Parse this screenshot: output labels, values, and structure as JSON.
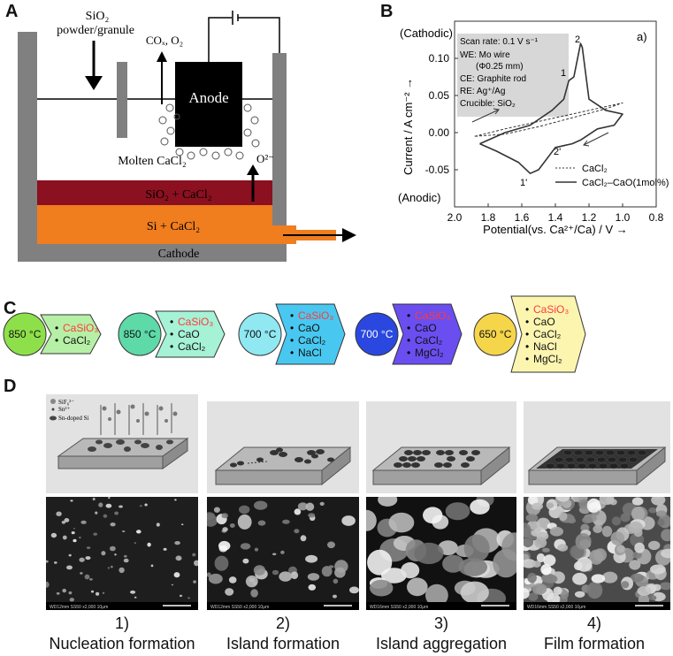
{
  "panel_labels": [
    "A",
    "B",
    "C",
    "D"
  ],
  "panelA": {
    "feed_label_1": "SiO₂",
    "feed_label_2": "powder/granule",
    "gas_label": "COₓ, O₂",
    "anode_label": "Anode",
    "molten_label": "Molten CaCl₂",
    "ion_label": "O²⁻",
    "layer1_label": "SiO₂ + CaCl₂",
    "layer2_label": "Si + CaCl₂",
    "cathode_label": "Cathode",
    "colors": {
      "layer1": "#8b1020",
      "layer2": "#f07d1e",
      "wall": "#808080",
      "anode": "#000000"
    }
  },
  "panelB": {
    "cathodic": "(Cathodic)",
    "anodic": "(Anodic)",
    "panel_tag": "a)",
    "ylabel": "Current / A cm⁻² →",
    "xlabel": "Potential(vs. Ca²⁺/Ca) / V →",
    "info_lines": [
      "Scan rate: 0.1 V s⁻¹",
      "WE: Mo wire",
      "(Φ0.25 mm)",
      "CE: Graphite rod",
      "RE: Ag⁺/Ag",
      "Crucible: SiO₂"
    ],
    "peak_labels": [
      "1",
      "2",
      "2'",
      "1'"
    ],
    "legend": [
      "CaCl₂",
      "CaCl₂–CaO(1mol%)"
    ]
  },
  "chart_data": {
    "type": "line",
    "xlabel": "Potential(vs. Ca²⁺/Ca) / V →",
    "ylabel": "Current / A cm⁻² →",
    "xlim": [
      2.0,
      0.8
    ],
    "ylim": [
      -0.1,
      0.15
    ],
    "x_ticks": [
      "2.0",
      "1.8",
      "1.6",
      "1.4",
      "1.2",
      "1.0",
      "0.8"
    ],
    "y_ticks": [
      "-0.05",
      "0.00",
      "0.05",
      "0.10"
    ],
    "x_tick_values": [
      2.0,
      1.8,
      1.6,
      1.4,
      1.2,
      1.0,
      0.8
    ],
    "y_tick_values": [
      -0.05,
      0.0,
      0.05,
      0.1
    ],
    "series": [
      {
        "name": "CaCl₂",
        "dash": true,
        "x": [
          1.88,
          1.7,
          1.5,
          1.3,
          1.1,
          1.0,
          1.1,
          1.3,
          1.5,
          1.7,
          1.88
        ],
        "y": [
          -0.005,
          0.005,
          0.015,
          0.025,
          0.035,
          0.04,
          0.032,
          0.02,
          0.008,
          -0.002,
          -0.005
        ]
      },
      {
        "name": "CaCl₂–CaO(1mol%)",
        "dash": false,
        "x": [
          1.85,
          1.7,
          1.55,
          1.42,
          1.35,
          1.32,
          1.29,
          1.25,
          1.24,
          1.2,
          1.1,
          1.0,
          1.05,
          1.15,
          1.25,
          1.3,
          1.4,
          1.5,
          1.55,
          1.62,
          1.75,
          1.85
        ],
        "y": [
          -0.015,
          0.0,
          0.01,
          0.03,
          0.045,
          0.07,
          0.075,
          0.12,
          0.115,
          0.045,
          0.03,
          0.025,
          0.01,
          0.005,
          -0.01,
          -0.015,
          -0.02,
          -0.05,
          -0.055,
          -0.04,
          -0.025,
          -0.015
        ]
      }
    ]
  },
  "panelC": {
    "steps": [
      {
        "temp": "850 °C",
        "color": "#8ee04a",
        "arrow": "#b6f0a6",
        "items": [
          "CaSiO₃",
          "CaCl₂"
        ]
      },
      {
        "temp": "850 °C",
        "color": "#5ed9a8",
        "arrow": "#a6f2d6",
        "items": [
          "CaSiO₃",
          "CaO",
          "CaCl₂"
        ]
      },
      {
        "temp": "700 °C",
        "color": "#8fe8f2",
        "arrow": "#48c8f0",
        "items": [
          "CaSiO₃",
          "CaO",
          "CaCl₂",
          "NaCl"
        ]
      },
      {
        "temp": "700 °C",
        "color": "#2a48e0",
        "arrow": "#6a4ef0",
        "items": [
          "CaSiO₃",
          "CaO",
          "CaCl₂",
          "MgCl₂"
        ]
      },
      {
        "temp": "650 °C",
        "color": "#f5d54a",
        "arrow": "#fbf5b0",
        "items": [
          "CaSiO₃",
          "CaO",
          "CaCl₂",
          "NaCl",
          "MgCl₂"
        ]
      }
    ],
    "highlight_color": "#ff3a3a"
  },
  "panelD": {
    "legend": [
      "SiF₆²⁻",
      "Sn²⁺",
      "Sn-doped Si"
    ],
    "sem_bars": [
      "WD12mm SS50 x2,000 10μm",
      "WD12mm SS50 x2,000 10μm",
      "WD16mm SS50 x2,000 10μm",
      "WD16mm SS50 x2,000 10μm"
    ],
    "captions": [
      {
        "num": "1)",
        "text": "Nucleation formation"
      },
      {
        "num": "2)",
        "text": "Island formation"
      },
      {
        "num": "3)",
        "text": "Island aggregation"
      },
      {
        "num": "4)",
        "text": "Film formation"
      }
    ]
  }
}
